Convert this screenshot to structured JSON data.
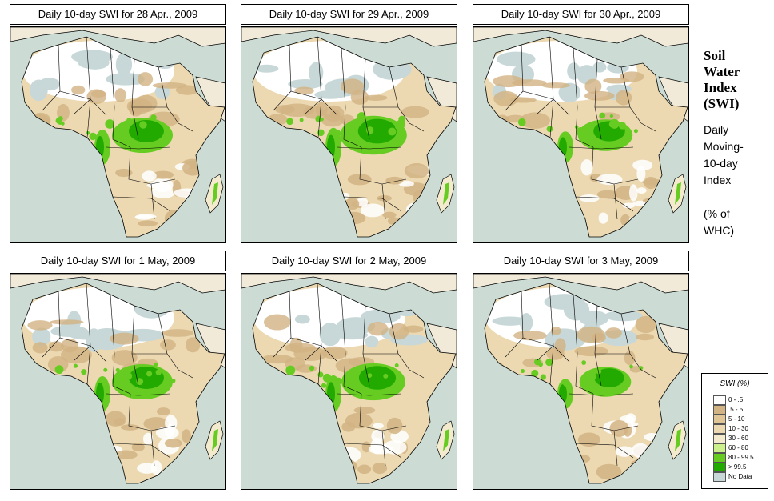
{
  "panels": [
    {
      "title": "Daily 10-day SWI for  28 Apr., 2009",
      "wet": 1.0
    },
    {
      "title": "Daily 10-day SWI for  29 Apr., 2009",
      "wet": 1.1
    },
    {
      "title": "Daily 10-day SWI for  30 Apr., 2009",
      "wet": 0.9
    },
    {
      "title": "Daily 10-day SWI for  1 May, 2009",
      "wet": 1.0
    },
    {
      "title": "Daily 10-day SWI for  2 May, 2009",
      "wet": 1.05
    },
    {
      "title": "Daily 10-day SWI for  3 May, 2009",
      "wet": 0.85
    }
  ],
  "side": {
    "title_lines": [
      "Soil",
      "Water",
      "Index",
      "(SWI)"
    ],
    "sub_lines": [
      "Daily",
      "Moving-",
      "10-day",
      "Index",
      "",
      "(% of",
      " WHC)"
    ]
  },
  "legend": {
    "title": "SWI (%)",
    "items": [
      {
        "label": "0 - .5",
        "color": "#ffffff"
      },
      {
        "label": ".5 - 5",
        "color": "#d2b383"
      },
      {
        "label": "5 - 10",
        "color": "#e0c697"
      },
      {
        "label": "10 - 30",
        "color": "#ecd9b2"
      },
      {
        "label": "30 - 60",
        "color": "#f4ebcf"
      },
      {
        "label": "60 - 80",
        "color": "#ccf08c"
      },
      {
        "label": "80 - 99.5",
        "color": "#66cc22"
      },
      {
        "label": "> 99.5",
        "color": "#22aa00"
      },
      {
        "label": "No Data",
        "color": "#c8d8d8"
      }
    ]
  },
  "colors": {
    "sea": "#ccdcd4",
    "land": "#ecd9b2",
    "desert": "#c8d8d8",
    "wet": "#66cc22",
    "verywet": "#22aa00",
    "dry": "#d2b383"
  }
}
